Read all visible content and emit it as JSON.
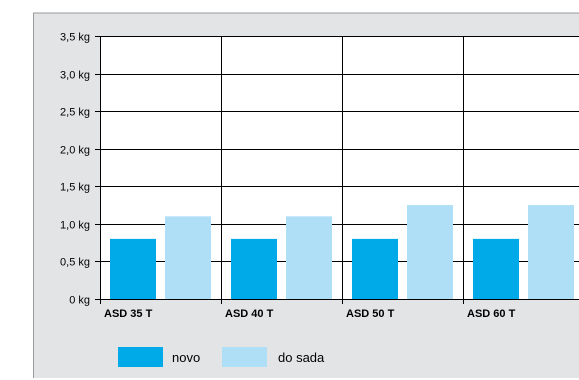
{
  "chart_data": {
    "type": "bar",
    "categories": [
      "ASD 35 T",
      "ASD 40 T",
      "ASD 50 T",
      "ASD 60 T"
    ],
    "series": [
      {
        "name": "novo",
        "values": [
          0.8,
          0.8,
          0.8,
          0.8
        ],
        "color": "#00a9e8"
      },
      {
        "name": "do sada",
        "values": [
          1.1,
          1.1,
          1.25,
          1.25
        ],
        "color": "#aedff6"
      }
    ],
    "ylim": [
      0,
      3.5
    ],
    "yticks": [
      {
        "value": 0,
        "label": "0 kg"
      },
      {
        "value": 0.5,
        "label": "0,5 kg"
      },
      {
        "value": 1.0,
        "label": "1,0 kg"
      },
      {
        "value": 1.5,
        "label": "1,5 kg"
      },
      {
        "value": 2.0,
        "label": "2,0 kg"
      },
      {
        "value": 2.5,
        "label": "2,5 kg"
      },
      {
        "value": 3.0,
        "label": "3,0 kg"
      },
      {
        "value": 3.5,
        "label": "3,5 kg"
      }
    ],
    "grid": true,
    "legend_position": "bottom-left",
    "title": "",
    "xlabel": "",
    "ylabel": "",
    "background_color": "#e3e4e5"
  }
}
